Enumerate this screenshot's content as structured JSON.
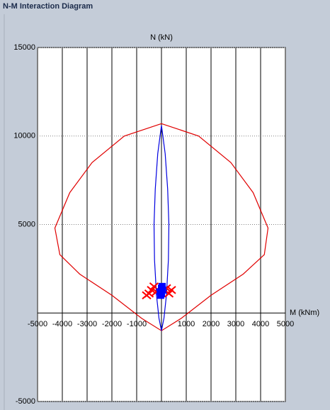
{
  "window_title": "N-M Interaction Diagram",
  "chart_data": {
    "type": "line",
    "y_label": "N (kN)",
    "x_label": "M (kNm)",
    "xlim": [
      -5000,
      5000
    ],
    "ylim": [
      -5000,
      15000
    ],
    "xticks": [
      -5000,
      -4000,
      -3000,
      -2000,
      -1000,
      1000,
      2000,
      3000,
      4000,
      5000
    ],
    "yticks": [
      -5000,
      5000,
      10000,
      15000
    ],
    "grid": true,
    "series": [
      {
        "color": "#e00000",
        "marker": "none",
        "x": [
          0,
          -1500,
          -2800,
          -3700,
          -4300,
          -4100,
          -3300,
          -2000,
          -800,
          0,
          800,
          2000,
          3300,
          4150,
          4300,
          3700,
          2800,
          1500,
          0
        ],
        "values": [
          10700,
          10000,
          8500,
          6800,
          4800,
          3300,
          2200,
          1000,
          -300,
          -1000,
          -300,
          1000,
          2200,
          3300,
          4800,
          6800,
          8500,
          10000,
          10700
        ]
      },
      {
        "color": "#0000e0",
        "marker": "none",
        "x": [
          0,
          -150,
          -250,
          -300,
          -280,
          -200,
          -100,
          0,
          100,
          200,
          280,
          300,
          250,
          150,
          0
        ],
        "values": [
          10600,
          9000,
          7000,
          5000,
          3000,
          1000,
          -300,
          -1000,
          -300,
          1000,
          3000,
          5000,
          7000,
          9000,
          10600
        ]
      },
      {
        "color": "#ff0000",
        "marker": "x",
        "x": [
          -500,
          -400,
          -300,
          -200,
          300,
          200,
          -600,
          400
        ],
        "values": [
          1100,
          1300,
          1500,
          1200,
          1100,
          1400,
          1000,
          1300
        ]
      },
      {
        "color": "#0000ff",
        "marker": "square",
        "x": [
          0,
          50,
          -50,
          30,
          -30,
          0
        ],
        "values": [
          1100,
          1300,
          1200,
          1500,
          1000,
          1400
        ]
      }
    ]
  }
}
